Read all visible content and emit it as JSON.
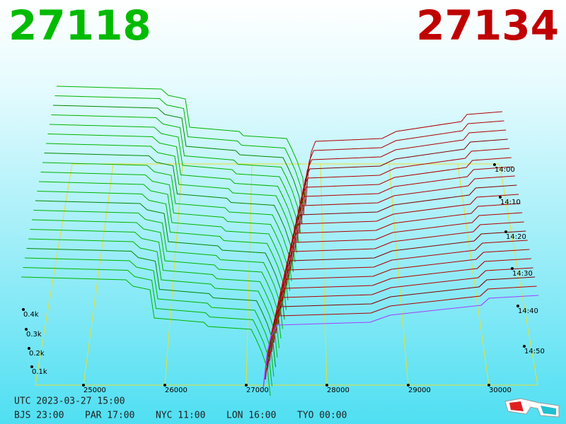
{
  "header": {
    "bid": "27118",
    "ask": "27134"
  },
  "price_axis": [
    "25000",
    "26000",
    "27000",
    "28000",
    "29000",
    "30000"
  ],
  "depth_axis": [
    "0.1k",
    "0.2k",
    "0.3k",
    "0.4k"
  ],
  "time_axis": [
    "14:00",
    "14:10",
    "14:20",
    "14:30",
    "14:40",
    "14:50"
  ],
  "footer": {
    "utc": "UTC 2023-03-27 15:00",
    "zones": [
      "BJS 23:00",
      "PAR 17:00",
      "NYC 11:00",
      "LON 16:00",
      "TYO 00:00"
    ]
  }
}
